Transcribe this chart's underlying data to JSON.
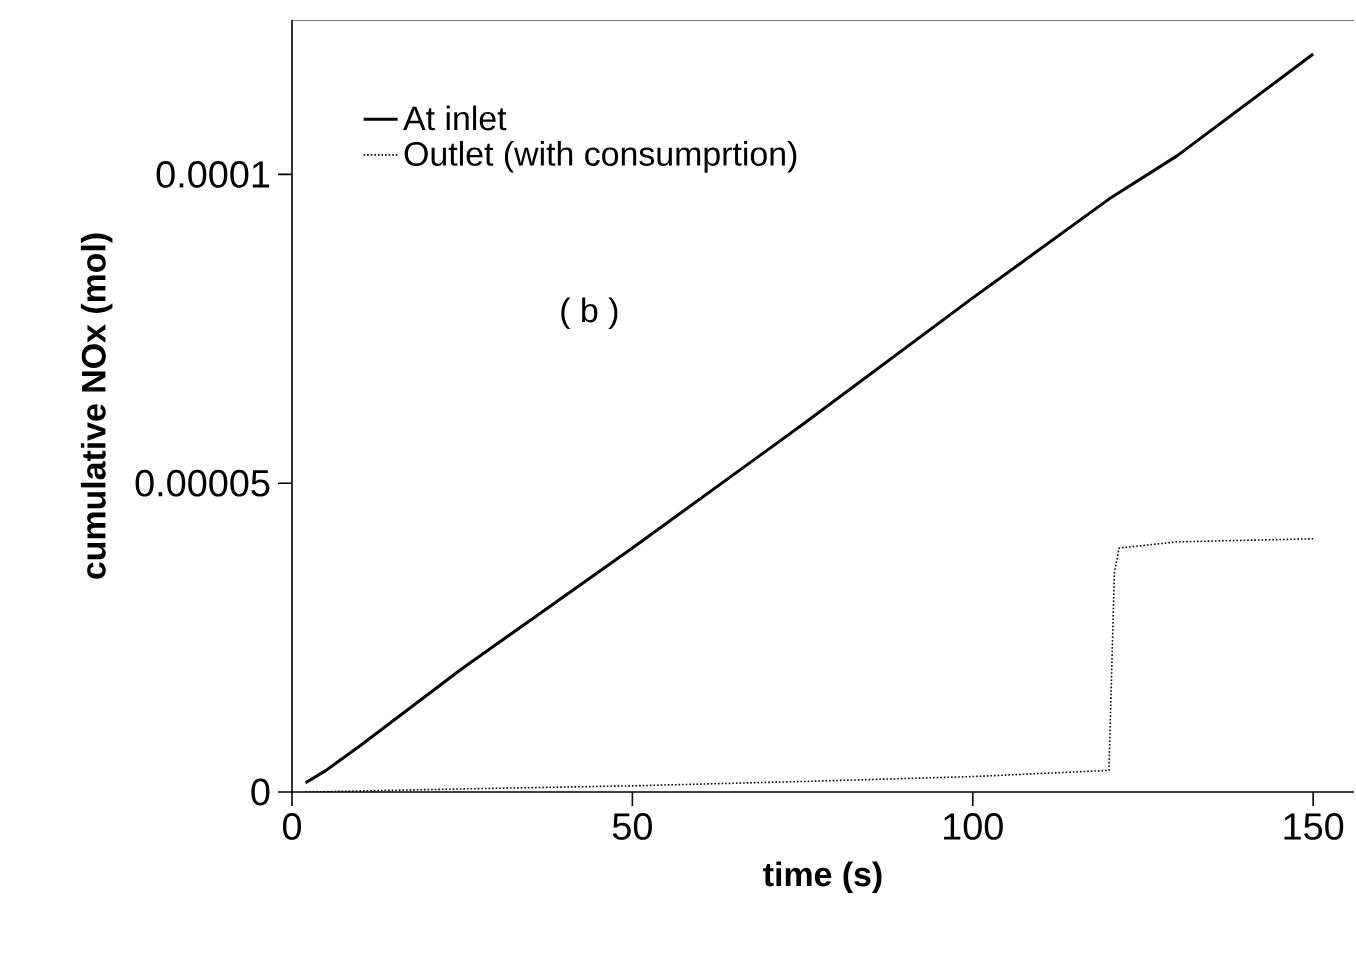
{
  "chart_data": {
    "type": "line",
    "xlabel": "time (s)",
    "ylabel": "cumulative NOx (mol)",
    "annotations": [
      "( b )"
    ],
    "xlim": [
      0,
      156
    ],
    "ylim": [
      0,
      0.000125
    ],
    "xticks": [
      0,
      50,
      100,
      150
    ],
    "yticks": [
      {
        "value": 0,
        "label": "0"
      },
      {
        "value": 5e-05,
        "label": "0.00005"
      },
      {
        "value": 0.0001,
        "label": "0.0001"
      }
    ],
    "grid": false,
    "legend": "top left",
    "marker": "none",
    "series": [
      {
        "name": "At  inlet",
        "color": "#000000",
        "line_style": "solid",
        "x": [
          2,
          5,
          10,
          25,
          50,
          75,
          100,
          120,
          130,
          150
        ],
        "values": [
          1.5e-06,
          3.5e-06,
          7.5e-06,
          2e-05,
          3.95e-05,
          5.95e-05,
          8e-05,
          9.6e-05,
          0.000103,
          0.0001195
        ]
      },
      {
        "name": "Outlet (with consumprtion)",
        "color": "#000000",
        "line_style": "dotted",
        "x": [
          2,
          25,
          50,
          75,
          100,
          120,
          120.8,
          121.5,
          130,
          150
        ],
        "values": [
          0,
          5e-07,
          1e-06,
          1.7e-06,
          2.5e-06,
          3.5e-06,
          3.55e-05,
          3.95e-05,
          4.05e-05,
          4.1e-05
        ]
      }
    ]
  }
}
